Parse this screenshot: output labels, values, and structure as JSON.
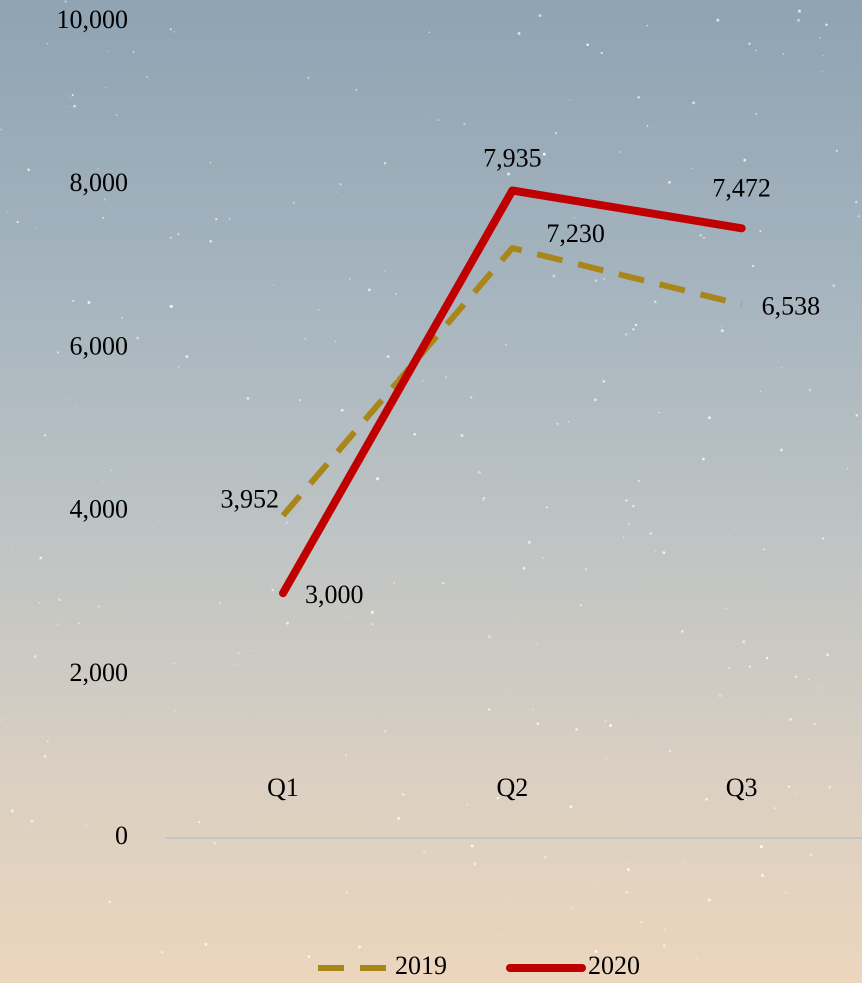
{
  "chart_data": {
    "type": "line",
    "categories": [
      "Q1",
      "Q2",
      "Q3"
    ],
    "series": [
      {
        "name": "2019",
        "color": "#a8861a",
        "dashed": true,
        "values": [
          3952,
          7230,
          6538
        ],
        "value_labels": [
          "3,952",
          "7,230",
          "6,538"
        ]
      },
      {
        "name": "2020",
        "color": "#c00000",
        "dashed": false,
        "values": [
          3000,
          7935,
          7472
        ],
        "value_labels": [
          "3,000",
          "7,935",
          "7,472"
        ]
      }
    ],
    "ylim": [
      0,
      10000
    ],
    "yticks": [
      0,
      {
        "value": 2000,
        "label": "2,000"
      },
      {
        "value": 4000,
        "label": "4,000"
      },
      {
        "value": 6000,
        "label": "6,000"
      },
      {
        "value": 8000,
        "label": "8,000"
      },
      {
        "value": 10000,
        "label": "10,000"
      }
    ],
    "legend": "bottom"
  }
}
